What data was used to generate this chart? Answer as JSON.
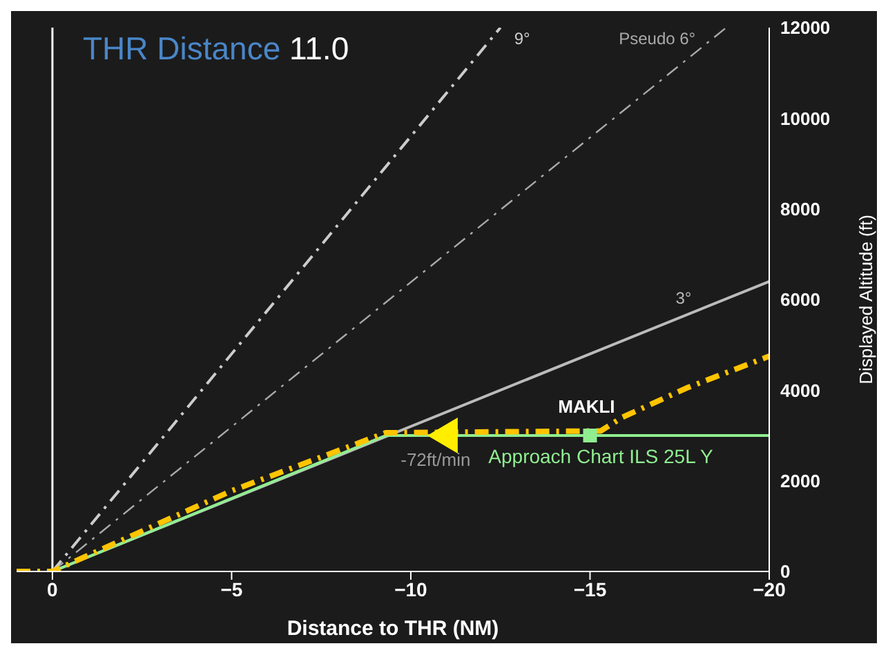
{
  "chart_data": {
    "type": "line",
    "title": "THR Distance",
    "subtitle": "11.0",
    "xlabel": "Distance to THR (NM)",
    "ylabel": "Displayed Altitude (ft)",
    "xlim": [
      1,
      -20
    ],
    "xticks": [
      0,
      {
        "value": -5,
        "label": "−5"
      },
      {
        "value": -10,
        "label": "−10"
      },
      {
        "value": -15,
        "label": "−15"
      },
      {
        "value": -20,
        "label": "−20"
      }
    ],
    "ylim": [
      0,
      12000
    ],
    "yticks": [
      0,
      2000,
      4000,
      6000,
      8000,
      10000,
      12000
    ],
    "grid": false,
    "ref_lines": [
      {
        "axis": "x",
        "value": 0,
        "color": "#ffffff"
      }
    ],
    "annotations": [
      {
        "text": "-72ft/min",
        "x": -11,
        "y": 3000
      }
    ],
    "series": [
      {
        "name": "9°",
        "color": "#cccccc",
        "line_style": "dashdot",
        "x": [
          0,
          -12.5
        ],
        "values": [
          0,
          12000
        ]
      },
      {
        "name": "Pseudo 6°",
        "color": "#aaaaaa",
        "line_style": "dashdot",
        "x": [
          0,
          -18.8
        ],
        "values": [
          0,
          12000
        ]
      },
      {
        "name": "3°",
        "color": "#bbbbbb",
        "line_style": "solid",
        "x": [
          0,
          -20
        ],
        "values": [
          0,
          6400
        ]
      },
      {
        "name": "Approach Chart ILS 25L Y",
        "color": "#90ee90",
        "line_style": "solid",
        "x": [
          0,
          -9.3,
          -20
        ],
        "values": [
          0,
          3000,
          3000
        ]
      },
      {
        "color": "#ffc400",
        "line_style": "dashdot",
        "x": [
          1,
          0,
          -5,
          -9.3,
          -15.3,
          -15.9,
          -17.7,
          -20
        ],
        "values": [
          0,
          0,
          1780,
          3060,
          3100,
          3400,
          4050,
          4750
        ]
      },
      {
        "type": "scatter",
        "marker": "triangle",
        "color": "#ffee00",
        "x": [
          -11
        ],
        "values": [
          3000
        ]
      },
      {
        "name": "MAKLI",
        "type": "scatter",
        "marker": "square",
        "color": "#90ee90",
        "x": [
          -15
        ],
        "values": [
          3000
        ]
      }
    ]
  }
}
